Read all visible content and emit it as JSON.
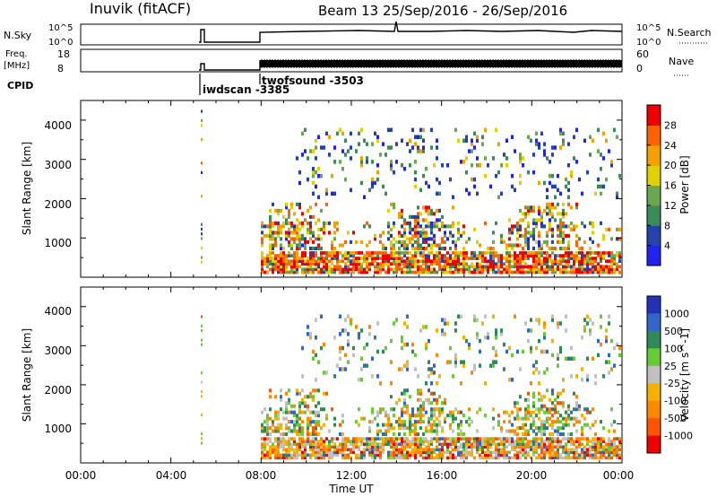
{
  "header": {
    "station": "Inuvik (fitACF)",
    "beam_dates": "Beam 13  25/Sep/2016 - 26/Sep/2016"
  },
  "strip_labels": {
    "nsky": "N.Sky",
    "nsky_ticks": [
      "10^5",
      "10^0"
    ],
    "nsearch": "N.Search",
    "nsearch_ticks": [
      "10^5",
      "10^0"
    ],
    "freq": "Freq.",
    "freq_unit": "[MHz]",
    "freq_ticks": [
      "18",
      "8"
    ],
    "nave": "Nave",
    "nave_ticks": [
      "60",
      "0"
    ],
    "cpid": "CPID",
    "cpid_names": [
      "iwdscan -3385",
      "twofsound -3503"
    ]
  },
  "axes": {
    "xlabel": "Time UT",
    "x_ticks": [
      "00:00",
      "04:00",
      "08:00",
      "12:00",
      "16:00",
      "20:00",
      "00:00"
    ],
    "ylabel": "Slant Range [km]",
    "y_ticks": [
      "1000",
      "2000",
      "3000",
      "4000"
    ]
  },
  "colorbars": {
    "power": {
      "label": "Power [dB]",
      "ticks": [
        "4",
        "8",
        "12",
        "16",
        "20",
        "24",
        "28"
      ],
      "colors": [
        "#2222ee",
        "#2244aa",
        "#3a8a5a",
        "#6aa84f",
        "#e0d000",
        "#f5a000",
        "#ff6000",
        "#ee0000"
      ]
    },
    "velocity": {
      "label": "Velocity [m s^-1]",
      "ticks": [
        "1000",
        "500",
        "100",
        "25",
        "-25",
        "-100",
        "-500",
        "-1000"
      ],
      "colors": [
        "#2233bb",
        "#3366cc",
        "#2e8b57",
        "#66cc33",
        "#c0c0c0",
        "#f5b000",
        "#ff8800",
        "#ff5500",
        "#ee0000"
      ]
    }
  },
  "chart_data": {
    "type": "heatmap",
    "title": "Inuvik (fitACF)  Beam 13  25/Sep/2016 - 26/Sep/2016",
    "xlabel": "Time UT",
    "ylabel": "Slant Range [km]",
    "xlim_hours": [
      0,
      24
    ],
    "ylim_km": [
      0,
      4500
    ],
    "panels": [
      {
        "name": "Power",
        "unit": "dB",
        "range": [
          0,
          30
        ]
      },
      {
        "name": "Velocity",
        "unit": "m s^-1",
        "range": [
          -1000,
          1000
        ]
      }
    ],
    "cpid_segments": [
      {
        "name": "iwdscan",
        "cpid": -3385,
        "start_hour": 5.3
      },
      {
        "name": "twofsound",
        "cpid": -3503,
        "start_hour": 8.0
      }
    ],
    "freq_ticks_mhz": [
      8,
      18
    ],
    "nave_ticks": [
      0,
      60
    ],
    "nsky_ticks": [
      "10^0",
      "10^5"
    ],
    "nsearch_ticks": [
      "10^0",
      "10^5"
    ]
  }
}
